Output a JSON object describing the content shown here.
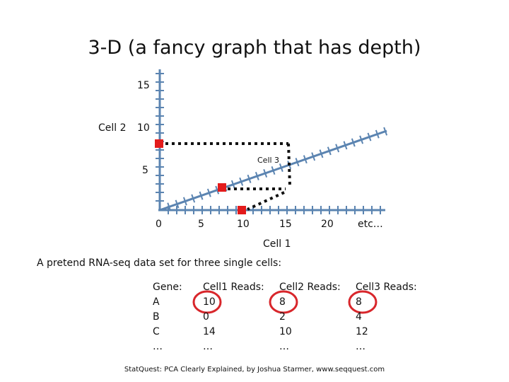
{
  "title": "3-D (a fancy graph that has depth)",
  "plot": {
    "y_axis_label": "Cell 2",
    "x_axis_label": "Cell 1",
    "z_axis_label": "Cell 3",
    "y_ticks": [
      "15",
      "10",
      "5"
    ],
    "x_ticks": [
      "0",
      "5",
      "10",
      "15",
      "20",
      "etc…"
    ],
    "point_color": "#e31b1b",
    "axis_color": "#5b84b1"
  },
  "caption": "A pretend RNA-seq data set for three single cells:",
  "table": {
    "columns": [
      {
        "header": "Gene:",
        "values": [
          "A",
          "B",
          "C",
          "…"
        ]
      },
      {
        "header": "Cell1 Reads:",
        "values": [
          "10",
          "0",
          "14",
          "…"
        ]
      },
      {
        "header": "Cell2 Reads:",
        "values": [
          "8",
          "2",
          "10",
          "…"
        ]
      },
      {
        "header": "Cell3 Reads:",
        "values": [
          "8",
          "4",
          "12",
          "…"
        ]
      }
    ],
    "highlight_color": "#d8262b"
  },
  "footer": "StatQuest: PCA Clearly Explained, by Joshua Starmer, www.seqquest.com"
}
